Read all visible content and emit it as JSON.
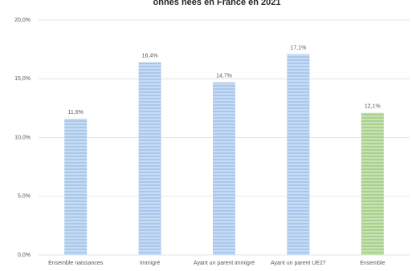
{
  "chart_data": {
    "type": "bar",
    "title": "onnes nées en France en 2021",
    "categories": [
      "Ensemble naissances",
      "Immigré",
      "Ayant un parent immigré",
      "Ayant un parent UE27",
      "Ensemble"
    ],
    "values": [
      11.6,
      16.4,
      14.7,
      17.1,
      12.1
    ],
    "value_labels": [
      "11,6%",
      "16,4%",
      "14,7%",
      "17,1%",
      "12,1%"
    ],
    "colors": [
      "#a9c8ec",
      "#a9c8ec",
      "#a9c8ec",
      "#a9c8ec",
      "#a9d18e"
    ],
    "ylim": [
      0,
      20
    ],
    "yticks": [
      {
        "value": 0,
        "label": "0,0%"
      },
      {
        "value": 5,
        "label": "5,0%"
      },
      {
        "value": 10,
        "label": "10,0%"
      },
      {
        "value": 15,
        "label": "15,0%"
      },
      {
        "value": 20,
        "label": "20,0%"
      }
    ],
    "grid": true
  }
}
